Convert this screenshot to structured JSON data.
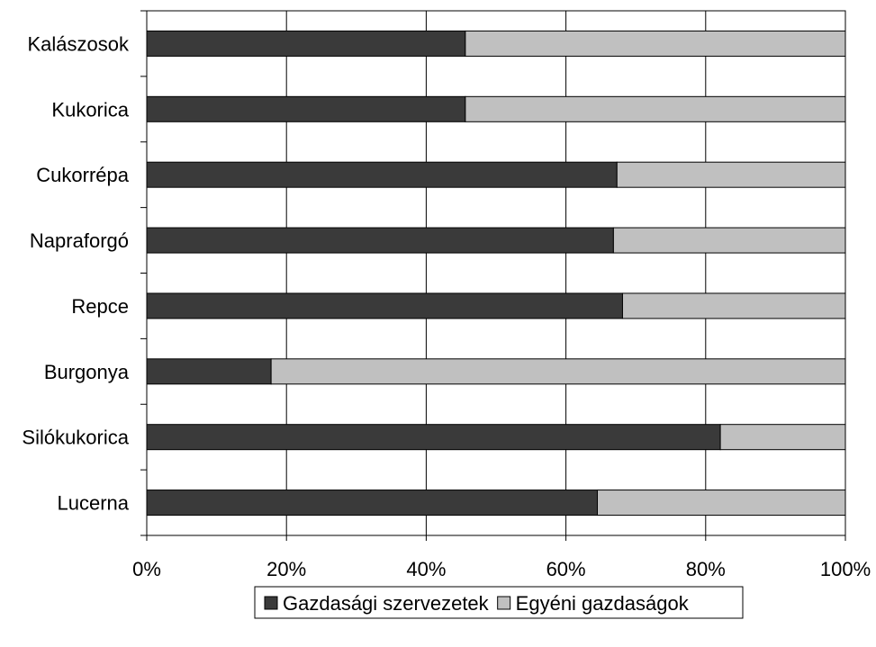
{
  "chart_data": {
    "type": "bar",
    "orientation": "horizontal",
    "stacked": "percent",
    "categories": [
      "Kalászosok",
      "Kukorica",
      "Cukorrépa",
      "Napraforgó",
      "Repce",
      "Burgonya",
      "Silókukorica",
      "Lucerna"
    ],
    "series": [
      {
        "name": "Gazdasági szervezetek",
        "values": [
          45.6,
          45.6,
          67.3,
          66.8,
          68.1,
          17.8,
          82.1,
          64.5
        ],
        "color": "#3a3a3a"
      },
      {
        "name": "Egyéni gazdaságok",
        "values": [
          54.4,
          54.4,
          32.7,
          33.2,
          31.9,
          82.2,
          17.9,
          35.5
        ],
        "color": "#c0c0c0"
      }
    ],
    "xlim": [
      0,
      100
    ],
    "xticks": [
      "0%",
      "20%",
      "40%",
      "60%",
      "80%",
      "100%"
    ],
    "grid": "vertical",
    "legend_position": "bottom"
  }
}
